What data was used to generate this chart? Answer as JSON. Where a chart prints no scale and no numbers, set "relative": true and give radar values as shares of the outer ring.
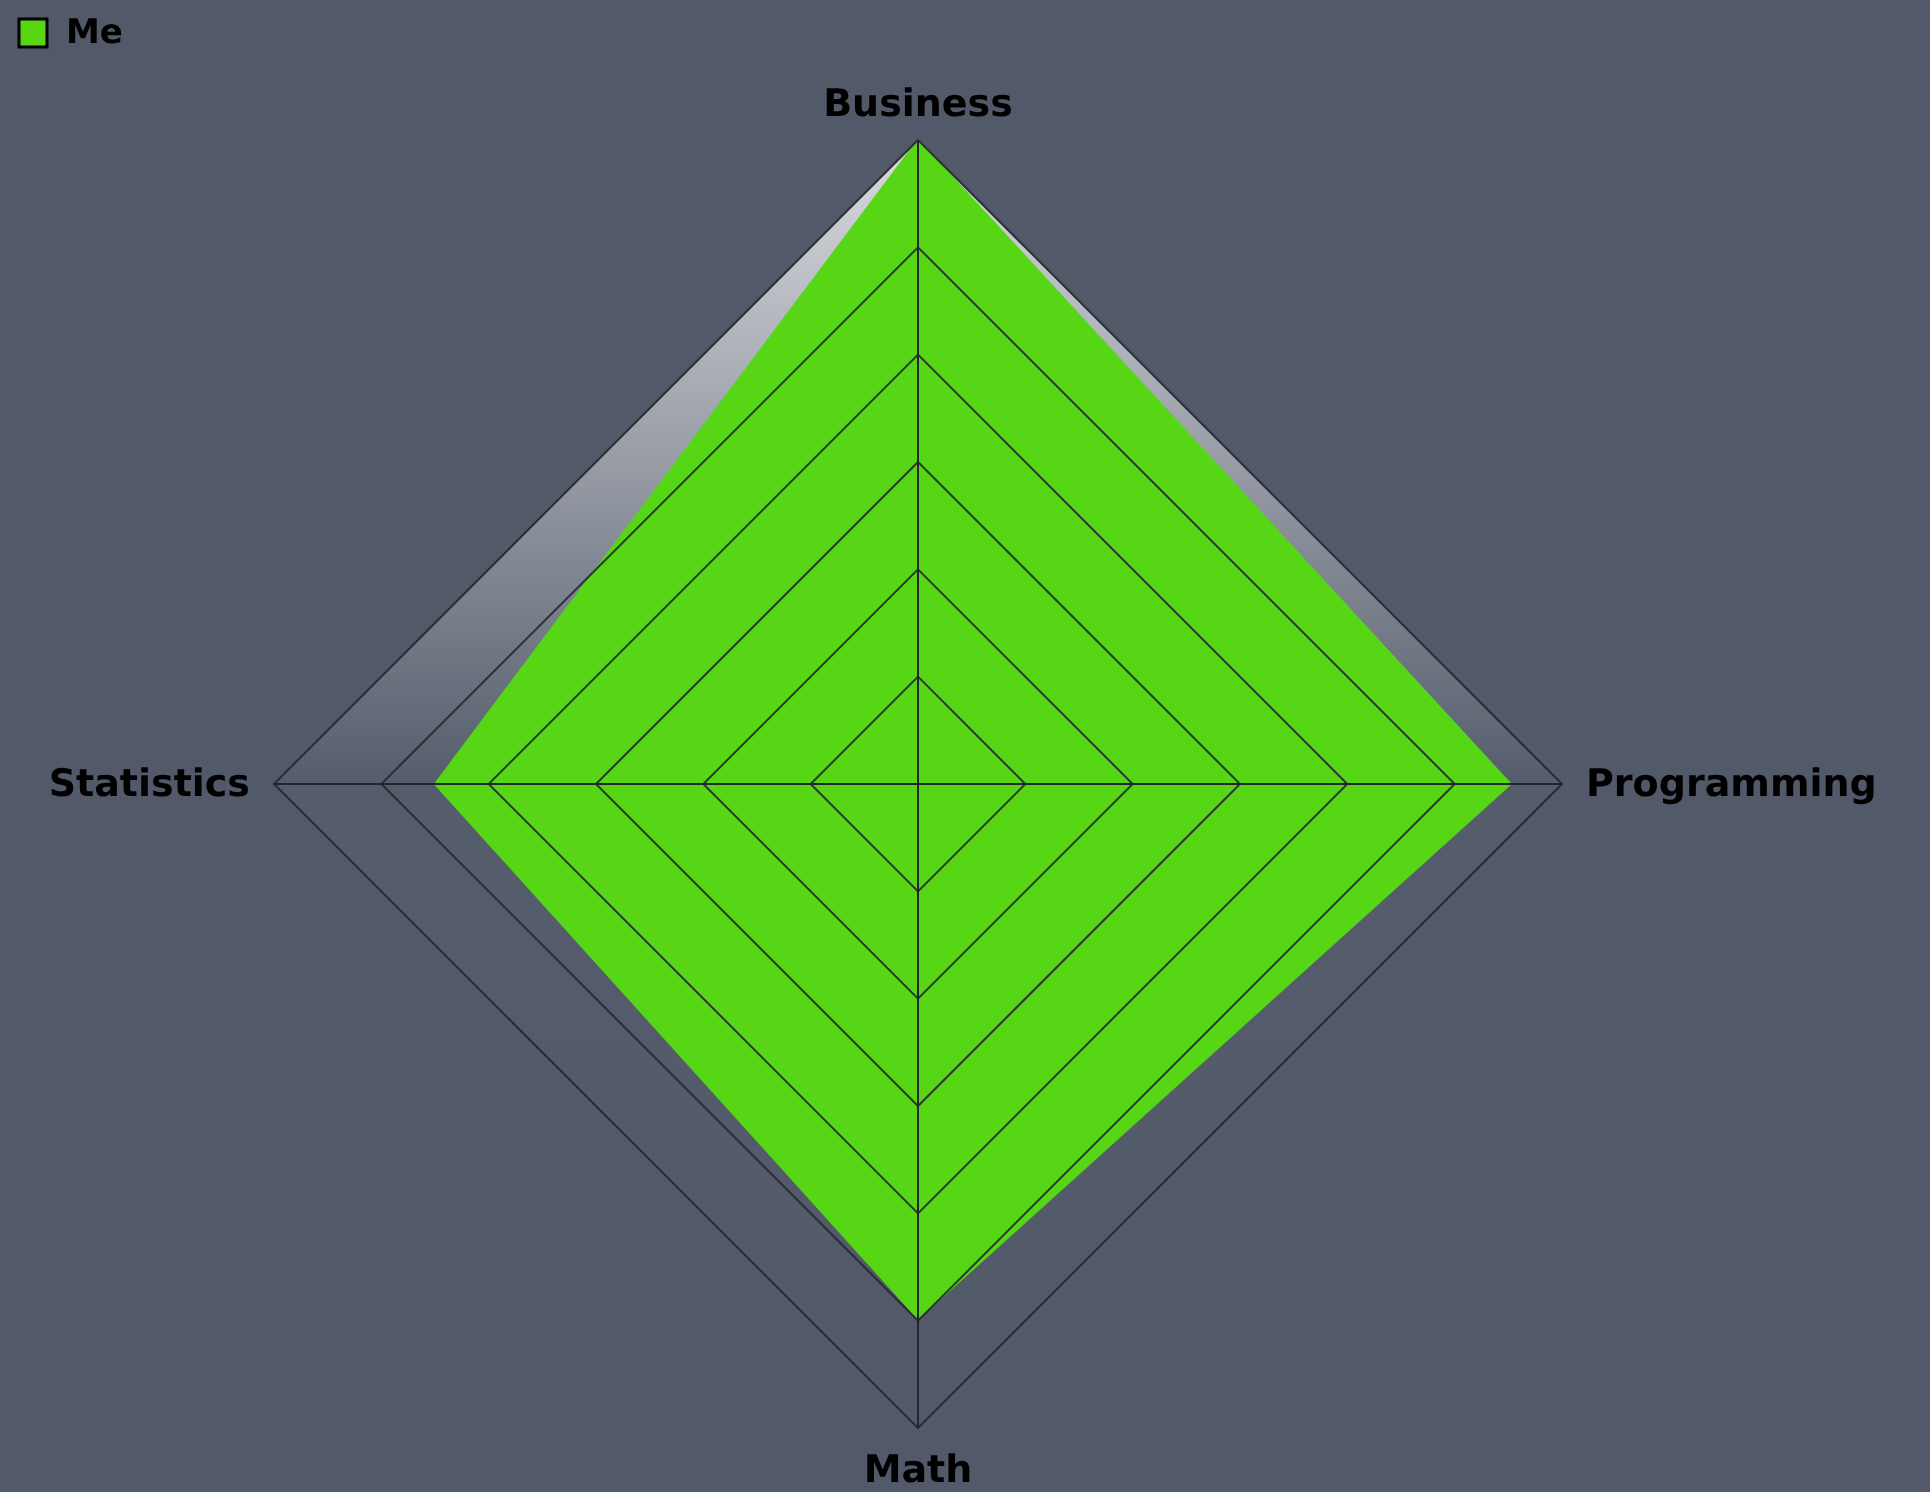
{
  "chart_data": {
    "type": "radar",
    "categories": [
      "Business",
      "Programming",
      "Math",
      "Statistics"
    ],
    "series": [
      {
        "name": "Me",
        "color": "#57d616",
        "values": [
          1,
          0.92,
          0.83,
          0.75
        ]
      }
    ],
    "relative": true,
    "grid": true,
    "legend": "top left"
  }
}
